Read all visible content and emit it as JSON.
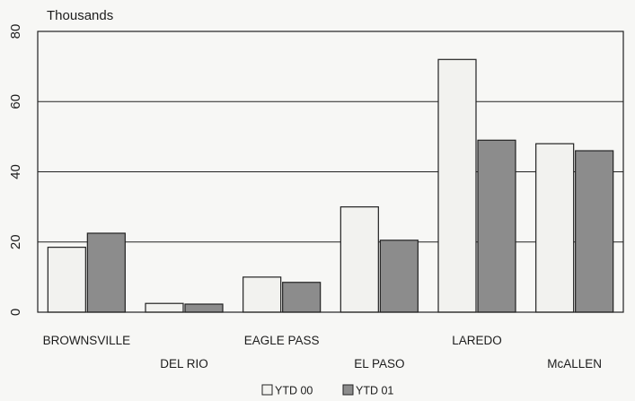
{
  "chart_data": {
    "type": "bar",
    "title": "",
    "ylabel": "Thousands",
    "xlabel": "",
    "ylim": [
      0,
      80
    ],
    "yticks": [
      0,
      20,
      40,
      60,
      80
    ],
    "grid": true,
    "legend_position": "bottom-center",
    "categories": [
      "BROWNSVILLE",
      "DEL RIO",
      "EAGLE PASS",
      "EL PASO",
      "LAREDO",
      "McALLEN"
    ],
    "series": [
      {
        "name": "YTD 00",
        "values": [
          18.5,
          2.5,
          10,
          30,
          72,
          48
        ]
      },
      {
        "name": "YTD 01",
        "values": [
          22.5,
          2.3,
          8.5,
          20.5,
          49,
          46
        ]
      }
    ]
  },
  "colors": {
    "ytd00_fill": "#f2f2ef",
    "ytd01_fill": "#8c8c8c",
    "outline": "#222222",
    "background": "#f7f7f5"
  }
}
